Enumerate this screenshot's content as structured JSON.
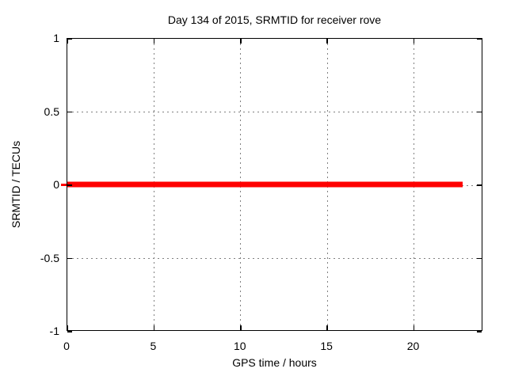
{
  "chart_data": {
    "type": "line",
    "title": "Day 134 of 2015, SRMTID for receiver rove",
    "xlabel": "GPS time / hours",
    "ylabel": "SRMTID / TECUs",
    "xlim": [
      0,
      24
    ],
    "ylim": [
      -1,
      1
    ],
    "x_ticks": [
      0,
      5,
      10,
      15,
      20
    ],
    "y_ticks": [
      -1,
      -0.5,
      0,
      0.5,
      1
    ],
    "grid": true,
    "legend_position": "none",
    "series": [
      {
        "name": "SRMTID",
        "color": "#ff0000",
        "line_width": 7,
        "x": [
          0,
          22.9
        ],
        "y": [
          0,
          0
        ]
      }
    ]
  },
  "colors": {
    "background": "#ffffff",
    "border": "#000000",
    "grid": "#808080",
    "text": "#000000",
    "series": "#ff0000"
  }
}
